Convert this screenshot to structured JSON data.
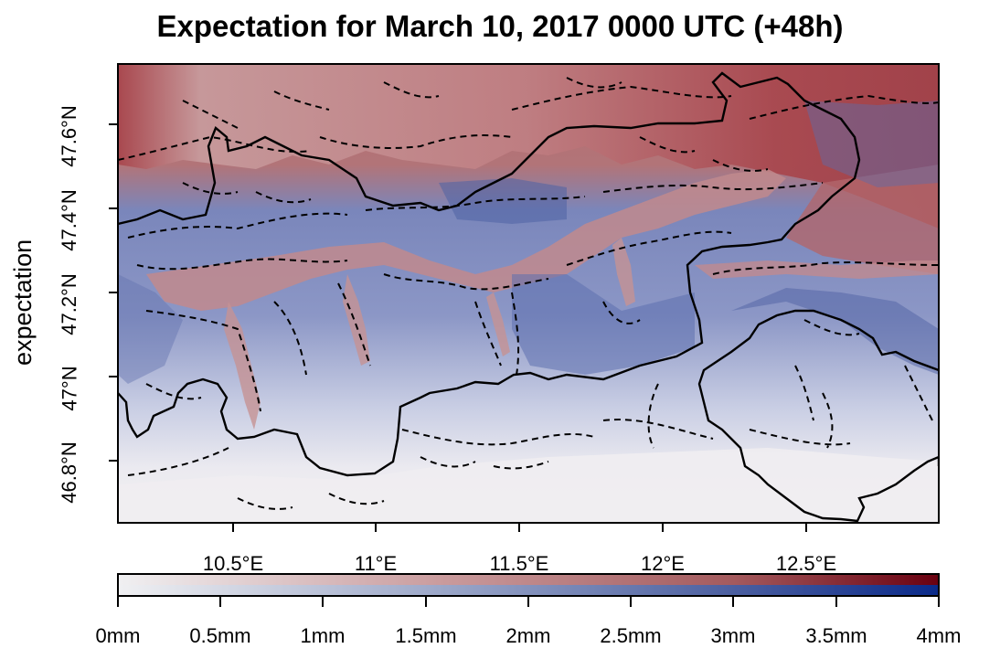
{
  "title": "Expectation for March 10, 2017 0000 UTC (+48h)",
  "ylabel": "expectation",
  "y_ticks": [
    "47.6°N",
    "47.4°N",
    "47.2°N",
    "47°N",
    "46.8°N"
  ],
  "x_ticks": [
    "10.5°E",
    "11°E",
    "11.5°E",
    "12°E",
    "12.5°E"
  ],
  "colorbar": {
    "ticks": [
      "0mm",
      "0.5mm",
      "1mm",
      "1.5mm",
      "2mm",
      "2.5mm",
      "3mm",
      "3.5mm",
      "4mm"
    ],
    "range": [
      0,
      4
    ],
    "upper_colors": [
      "#f0f0f2",
      "#c99a9c",
      "#a45a5d",
      "#6a0010"
    ],
    "lower_colors": [
      "#f0f0f2",
      "#9aa6c8",
      "#4b5fa0",
      "#0a2a8a"
    ]
  },
  "map": {
    "lon_range": [
      10.1,
      12.95
    ],
    "lat_range": [
      46.65,
      47.75
    ],
    "colors": {
      "high_red": "#a9585c",
      "mid_red": "#c98e90",
      "valley_red": "#c48a8c",
      "blue_dark": "#4f62a4",
      "blue_mid": "#8893c2",
      "blue_light": "#c5cbe2",
      "white": "#eeeef2"
    }
  }
}
